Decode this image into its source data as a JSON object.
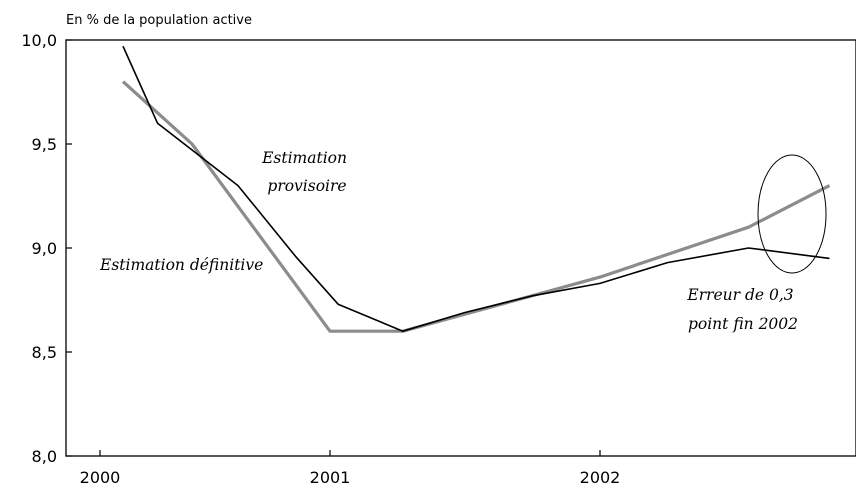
{
  "chart_data": {
    "type": "line",
    "unit_label": "En % de la population active",
    "y_ticks": [
      "10,0",
      "9,5",
      "9,0",
      "8,5",
      "8,0"
    ],
    "y_tick_values": [
      10.0,
      9.5,
      9.0,
      8.5,
      8.0
    ],
    "ylim": [
      8.0,
      10.0
    ],
    "x_ticks": [
      "2000",
      "2001",
      "2002"
    ],
    "x_tick_values": [
      2000,
      2001,
      2002
    ],
    "xlim": [
      2000,
      2002.9
    ],
    "series": [
      {
        "name": "Estimation provisoire",
        "color": "#000000",
        "points": [
          [
            2000.1,
            9.97
          ],
          [
            2000.25,
            9.6
          ],
          [
            2000.6,
            9.3
          ],
          [
            2000.85,
            8.96
          ],
          [
            2001.03,
            8.73
          ],
          [
            2001.27,
            8.6
          ],
          [
            2001.5,
            8.69
          ],
          [
            2001.75,
            8.77
          ],
          [
            2002.0,
            8.83
          ],
          [
            2002.25,
            8.93
          ],
          [
            2002.55,
            9.0
          ],
          [
            2002.85,
            8.95
          ]
        ]
      },
      {
        "name": "Estimation définitive",
        "color": "#8c8c8c",
        "points": [
          [
            2000.1,
            9.8
          ],
          [
            2000.4,
            9.5
          ],
          [
            2001.0,
            8.6
          ],
          [
            2001.27,
            8.6
          ],
          [
            2002.0,
            8.86
          ],
          [
            2002.55,
            9.1
          ],
          [
            2002.85,
            9.3
          ]
        ]
      }
    ],
    "annotations": {
      "provisoire_line1": "Estimation",
      "provisoire_line2": "provisoire",
      "definitive": "Estimation définitive",
      "erreur_line1": "Erreur de 0,3",
      "erreur_line2": "point fin 2002"
    },
    "grid": false,
    "legend": "none"
  }
}
